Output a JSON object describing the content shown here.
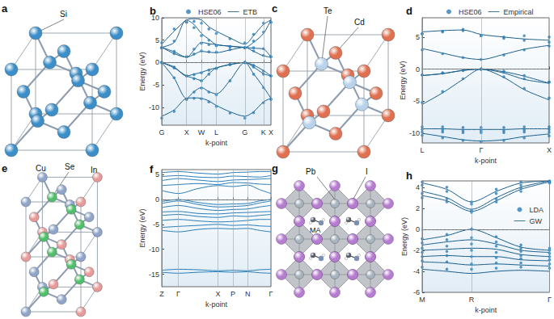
{
  "chart_data": [
    {
      "type": "line",
      "title": "b",
      "xlabel": "k-point",
      "ylabel": "Energy (eV)",
      "xlim": [
        0,
        4.4
      ],
      "xticks": [
        {
          "value": 0,
          "label": "G"
        },
        {
          "value": 1,
          "label": "X"
        },
        {
          "value": 1.6,
          "label": "W"
        },
        {
          "value": 2.2,
          "label": "L"
        },
        {
          "value": 3.35,
          "label": "G"
        },
        {
          "value": 4.1,
          "label": "K"
        },
        {
          "value": 4.4,
          "label": "X"
        }
      ],
      "ylim": [
        -14,
        10
      ],
      "yticks": [
        -10,
        -5,
        0,
        5,
        10
      ],
      "grid": "x",
      "legend": "top",
      "reference_line": 0,
      "series": [
        {
          "name": "HSE06",
          "type": "scatter",
          "marker": "circle",
          "color": "#2a7db8",
          "x": [
            0,
            0.5,
            1,
            1.3,
            1.6,
            1.9,
            2.2,
            2.75,
            3.35,
            3.7,
            4.1,
            4.4
          ],
          "values": [
            [
              -12.4,
              -10.9,
              -8.2,
              -8.0,
              -8.1,
              -8.8,
              -9.8,
              -11.3,
              -12.4,
              -11.2,
              -9.0,
              -8.2
            ],
            [
              0,
              -3.4,
              -8.2,
              -6.6,
              -5.7,
              -6.6,
              -7.2,
              -4.1,
              0,
              -2.6,
              -5.6,
              -8.2
            ],
            [
              0,
              -1.2,
              -3.0,
              -3.6,
              -4.1,
              -2.6,
              -1.3,
              -0.5,
              0,
              -1.0,
              -2.6,
              -3.0
            ],
            [
              0,
              -1.0,
              -3.0,
              -2.7,
              -2.3,
              -1.7,
              -1.3,
              -0.4,
              0,
              -0.6,
              -1.9,
              -3.0
            ],
            [
              3.3,
              2.0,
              1.3,
              1.9,
              2.6,
              2.4,
              2.3,
              2.9,
              3.3,
              2.6,
              1.6,
              1.3
            ],
            [
              3.3,
              2.5,
              1.3,
              3.0,
              4.3,
              4.0,
              3.8,
              3.5,
              3.3,
              3.3,
              3.1,
              1.3
            ],
            [
              3.3,
              4.8,
              9.0,
              7.8,
              6.0,
              5.0,
              3.8,
              3.6,
              3.3,
              4.8,
              6.8,
              9.0
            ],
            [
              4.4,
              7.5,
              9.0,
              9.2,
              8.8,
              7.5,
              6.5,
              5.3,
              4.4,
              6.3,
              8.8,
              9.0
            ]
          ]
        },
        {
          "name": "ETB",
          "type": "line",
          "line_style": "solid",
          "color": "#1b5e8c",
          "x": [
            0,
            0.5,
            1,
            1.3,
            1.6,
            1.9,
            2.2,
            2.75,
            3.35,
            3.7,
            4.1,
            4.4
          ],
          "values": [
            [
              -12,
              -10.6,
              -8,
              -7.9,
              -8.0,
              -8.6,
              -9.6,
              -11.0,
              -12,
              -11.0,
              -8.8,
              -8
            ],
            [
              0,
              -3.5,
              -8,
              -6.5,
              -5.6,
              -6.5,
              -7.0,
              -4.0,
              0,
              -2.5,
              -5.5,
              -8
            ],
            [
              0,
              -1.2,
              -3,
              -3.5,
              -4.0,
              -2.5,
              -1.2,
              -0.5,
              0,
              -1.0,
              -2.5,
              -3
            ],
            [
              0,
              -1.0,
              -3,
              -2.6,
              -2.2,
              -1.6,
              -1.2,
              -0.4,
              0,
              -0.6,
              -1.8,
              -3
            ],
            [
              3.4,
              2.0,
              1.2,
              1.8,
              2.5,
              2.3,
              2.2,
              2.8,
              3.4,
              2.5,
              1.5,
              1.2
            ],
            [
              3.4,
              2.4,
              1.2,
              2.8,
              4.5,
              4.2,
              4.0,
              3.6,
              3.4,
              3.2,
              3.0,
              1.2
            ],
            [
              3.4,
              4.5,
              9.5,
              8.5,
              6.5,
              5.2,
              4.0,
              3.7,
              3.4,
              4.5,
              6.5,
              9.5
            ],
            [
              4.1,
              7.0,
              9.5,
              9.8,
              9.5,
              8.0,
              7.0,
              5.5,
              4.1,
              6.0,
              8.5,
              9.5
            ]
          ]
        }
      ]
    },
    {
      "type": "line",
      "title": "d",
      "xlabel": "k-point",
      "ylabel": "Energy (eV)",
      "xlim": [
        0,
        1.866
      ],
      "xticks": [
        {
          "value": 0,
          "label": "L"
        },
        {
          "value": 0.866,
          "label": "Γ"
        },
        {
          "value": 1.866,
          "label": "X"
        }
      ],
      "ylim": [
        -11.5,
        8
      ],
      "yticks": [
        -10,
        -5,
        0,
        5
      ],
      "grid": "x",
      "legend": "top",
      "reference_line": 0,
      "series": [
        {
          "name": "HSE06",
          "type": "scatter",
          "marker": "circle",
          "color": "#2a7db8",
          "x": [
            0,
            0.3,
            0.6,
            0.866,
            1.2,
            1.5,
            1.866
          ],
          "values": [
            [
              -10.3,
              -10.7,
              -11.1,
              -11.3,
              -11.1,
              -10.7,
              -10.4
            ],
            [
              -9.0,
              -9.0,
              -9.1,
              -9.1,
              -9.1,
              -9.0,
              -9.0
            ],
            [
              -9.4,
              -9.5,
              -9.6,
              -9.6,
              -9.6,
              -9.5,
              -9.4
            ],
            [
              -9.8,
              -9.8,
              -9.9,
              -9.9,
              -9.9,
              -9.8,
              -9.8
            ],
            [
              -5.2,
              -3.5,
              -1.5,
              0,
              -1.2,
              -3.0,
              -4.5
            ],
            [
              -0.9,
              -0.6,
              -0.2,
              0,
              -0.5,
              -1.5,
              -2.0
            ],
            [
              -0.9,
              -0.6,
              -0.2,
              0,
              -0.3,
              -1.0,
              -2.0
            ],
            [
              3.0,
              2.4,
              1.8,
              1.5,
              2.2,
              3.0,
              3.6
            ],
            [
              5.5,
              5.8,
              6.0,
              5.2,
              4.8,
              4.5,
              4.2
            ],
            [
              5.5,
              5.9,
              6.2,
              5.2,
              5.0,
              5.2,
              5.0
            ]
          ]
        },
        {
          "name": "Empirical",
          "type": "line",
          "line_style": "solid",
          "color": "#1b5e8c",
          "x": [
            0,
            0.3,
            0.6,
            0.866,
            1.2,
            1.5,
            1.866
          ],
          "values": [
            [
              -10.0,
              -10.5,
              -11.0,
              -11.2,
              -11.0,
              -10.5,
              -10.1
            ],
            [
              -9.3,
              -9.3,
              -9.4,
              -9.4,
              -9.4,
              -9.3,
              -9.3
            ],
            [
              -5.5,
              -3.7,
              -1.6,
              0,
              -1.3,
              -3.2,
              -4.8
            ],
            [
              -1.0,
              -0.7,
              -0.2,
              0,
              -0.6,
              -1.6,
              -2.2
            ],
            [
              -1.0,
              -0.7,
              -0.2,
              0,
              -0.4,
              -1.1,
              -2.2
            ],
            [
              3.2,
              2.5,
              1.8,
              1.5,
              2.3,
              3.1,
              3.7
            ],
            [
              5.8,
              6.0,
              6.1,
              5.4,
              5.0,
              4.7,
              4.5
            ]
          ]
        }
      ]
    },
    {
      "type": "line",
      "title": "f",
      "xlabel": "k-point",
      "ylabel": "Energy (eV)",
      "xlim": [
        0,
        3.3
      ],
      "xticks": [
        {
          "value": 0,
          "label": "Z"
        },
        {
          "value": 0.5,
          "label": "Γ"
        },
        {
          "value": 1.7,
          "label": "X"
        },
        {
          "value": 2.15,
          "label": "P"
        },
        {
          "value": 2.6,
          "label": "N"
        },
        {
          "value": 3.3,
          "label": "Γ"
        }
      ],
      "ylim": [
        -17.5,
        6
      ],
      "yticks": [
        -15,
        -10,
        -5,
        0,
        5
      ],
      "grid": "x",
      "reference_line": 0,
      "series": [
        {
          "type": "line",
          "line_style": "solid",
          "color": "#2a7db8",
          "x": [
            0,
            0.5,
            1.1,
            1.7,
            2.15,
            2.6,
            2.95,
            3.3
          ],
          "values": [
            [
              -14.2,
              -14.0,
              -14.1,
              -14.3,
              -14.2,
              -14.3,
              -14.1,
              -14.0
            ],
            [
              -14.6,
              -14.8,
              -14.6,
              -14.5,
              -14.6,
              -14.5,
              -14.7,
              -14.8
            ],
            [
              -6.2,
              -6.5,
              -6.0,
              -5.8,
              -5.9,
              -5.8,
              -6.2,
              -6.5
            ],
            [
              -5.6,
              -5.4,
              -5.2,
              -5.0,
              -5.2,
              -5.1,
              -5.3,
              -5.4
            ],
            [
              -4.2,
              -4.0,
              -4.3,
              -4.5,
              -4.4,
              -4.2,
              -4.0,
              -4.0
            ],
            [
              -3.2,
              -3.0,
              -3.4,
              -3.6,
              -3.3,
              -3.4,
              -3.2,
              -3.0
            ],
            [
              -2.5,
              -2.4,
              -2.8,
              -2.9,
              -2.7,
              -2.6,
              -2.5,
              -2.4
            ],
            [
              -1.6,
              -1.2,
              -1.8,
              -2.2,
              -2.0,
              -1.9,
              -1.5,
              -1.2
            ],
            [
              -0.8,
              -0.3,
              -1.0,
              -1.5,
              -1.4,
              -1.2,
              -0.7,
              -0.3
            ],
            [
              -0.4,
              0,
              -0.6,
              -1.0,
              -0.9,
              -0.8,
              -0.3,
              0
            ],
            [
              1.8,
              1.2,
              2.2,
              2.8,
              2.6,
              2.9,
              2.0,
              1.2
            ],
            [
              2.8,
              3.0,
              3.2,
              3.0,
              3.4,
              3.3,
              3.1,
              3.0
            ],
            [
              3.8,
              4.2,
              3.9,
              3.6,
              3.9,
              4.0,
              4.1,
              4.2
            ],
            [
              4.6,
              4.8,
              4.5,
              4.4,
              4.7,
              4.6,
              4.5,
              4.8
            ],
            [
              5.4,
              5.6,
              5.3,
              5.1,
              5.4,
              5.5,
              5.6,
              5.6
            ]
          ]
        }
      ]
    },
    {
      "type": "line",
      "title": "h",
      "xlabel": "k-point",
      "ylabel": "Energy (eV)",
      "xlim": [
        0,
        1.29
      ],
      "xticks": [
        {
          "value": 0,
          "label": "M"
        },
        {
          "value": 0.5,
          "label": "R"
        },
        {
          "value": 1.29,
          "label": "Γ"
        }
      ],
      "ylim": [
        -6,
        4.6
      ],
      "yticks": [
        -6,
        -4,
        -2,
        0,
        2,
        4
      ],
      "grid": "x",
      "legend": "right",
      "reference_line": 0,
      "series": [
        {
          "name": "LDA",
          "type": "scatter",
          "marker": "circle",
          "color": "#2a7db8",
          "x": [
            0,
            0.25,
            0.5,
            0.75,
            1.0,
            1.29
          ],
          "values": [
            [
              3.0,
              2.6,
              1.6,
              2.6,
              3.6,
              4.4
            ],
            [
              3.4,
              2.9,
              1.8,
              2.9,
              3.9,
              4.6
            ],
            [
              4.2,
              3.6,
              2.4,
              3.4,
              4.2,
              4.5
            ],
            [
              4.5,
              4.0,
              2.6,
              3.8,
              4.5,
              4.5
            ],
            [
              -0.9,
              -0.5,
              0,
              -0.7,
              -1.5,
              -1.8
            ],
            [
              -1.3,
              -1.0,
              -0.8,
              -1.2,
              -1.8,
              -2.0
            ],
            [
              -1.8,
              -1.6,
              -1.4,
              -1.6,
              -2.1,
              -2.3
            ],
            [
              -2.2,
              -2.1,
              -2.0,
              -2.2,
              -2.5,
              -2.6
            ],
            [
              -2.6,
              -2.5,
              -2.6,
              -2.7,
              -2.8,
              -2.9
            ],
            [
              -3.0,
              -3.1,
              -3.3,
              -3.2,
              -3.2,
              -3.3
            ],
            [
              -3.6,
              -3.8,
              -3.8,
              -3.7,
              -3.6,
              -3.7
            ]
          ]
        },
        {
          "name": "GW",
          "type": "line",
          "line_style": "solid",
          "color": "#1b5e8c",
          "x": [
            0,
            0.25,
            0.5,
            0.75,
            1.0,
            1.29
          ],
          "values": [
            [
              3.2,
              2.7,
              1.7,
              2.7,
              3.8,
              4.5
            ],
            [
              3.6,
              3.0,
              1.9,
              3.0,
              4.0,
              4.6
            ],
            [
              4.4,
              3.8,
              2.6,
              3.6,
              4.4,
              4.6
            ],
            [
              -1.0,
              -0.6,
              0,
              -0.8,
              -1.7,
              -2.0
            ],
            [
              -1.5,
              -1.2,
              -1.0,
              -1.4,
              -2.0,
              -2.2
            ],
            [
              -2.0,
              -1.9,
              -1.8,
              -1.9,
              -2.4,
              -2.6
            ],
            [
              -2.6,
              -2.5,
              -2.6,
              -2.6,
              -2.9,
              -3.0
            ],
            [
              -3.1,
              -3.2,
              -3.4,
              -3.3,
              -3.4,
              -3.5
            ],
            [
              -3.8,
              -4.0,
              -4.2,
              -4.0,
              -3.9,
              -4.0
            ]
          ]
        }
      ]
    }
  ],
  "diagrams": [
    {
      "title": "a",
      "type": "diamond",
      "labels": [
        "Si"
      ],
      "colors": [
        "#3b8ec8"
      ]
    },
    {
      "title": "c",
      "type": "zincblende",
      "labels": [
        "Te",
        "Cd"
      ],
      "colors": [
        "#b9d2ec",
        "#e0704f"
      ]
    },
    {
      "title": "e",
      "type": "chalcopyrite",
      "labels": [
        "Cu",
        "Se",
        "In"
      ],
      "colors": [
        "#8fa4c8",
        "#4fbf6a",
        "#e79a98"
      ]
    },
    {
      "title": "g",
      "type": "perovskite",
      "labels": [
        "Pb",
        "I",
        "MA"
      ],
      "colors": [
        "#a7b3bd",
        "#b57cd0",
        "#555c66"
      ]
    }
  ]
}
